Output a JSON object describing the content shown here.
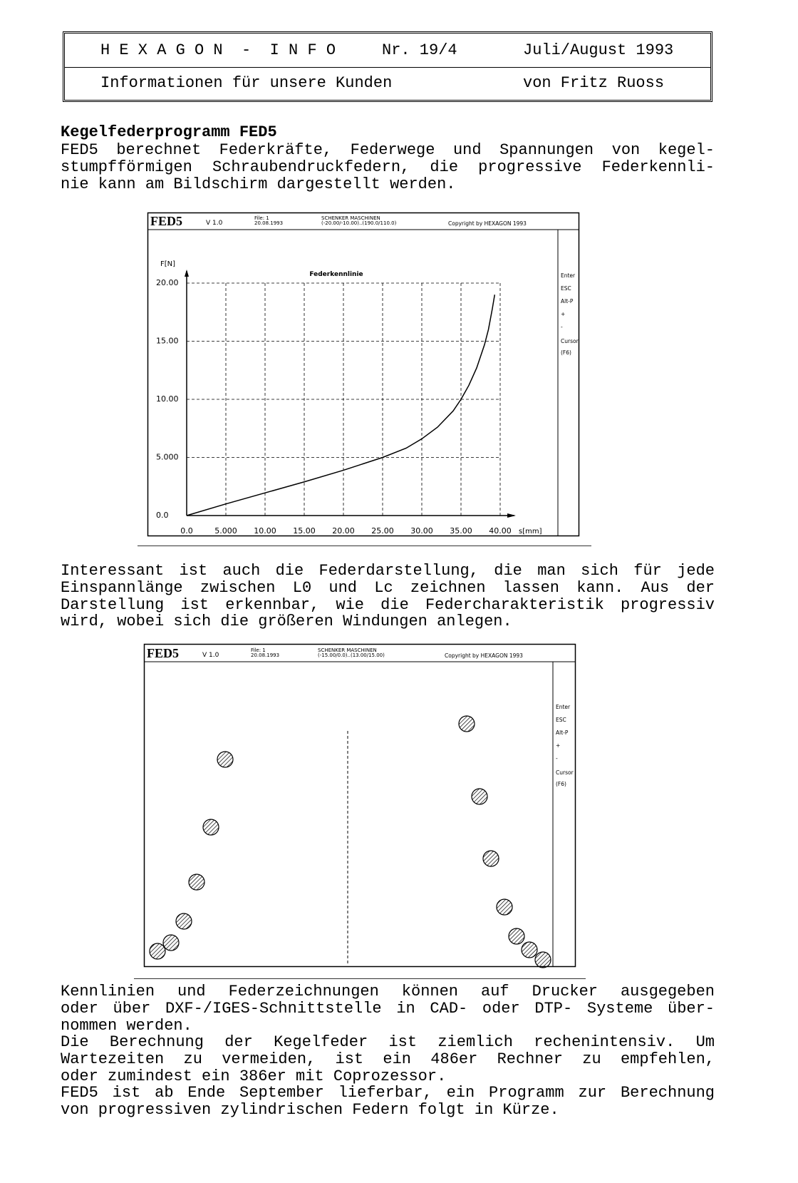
{
  "header": {
    "title": "H E X A G O N  -  I N F O",
    "issue": "Nr. 19/4",
    "date": "Juli/August 1993",
    "subtitle": "Informationen für unsere Kunden",
    "author": "von Fritz Ruoss"
  },
  "heading": "Kegelfederprogramm FED5",
  "paragraphs": [
    [
      "FED5 berechnet Federkräfte, Federwege und Spannungen von kegel-",
      "stumpfförmigen Schraubendruckfedern, die progressive Federkennli-",
      "nie kann am Bildschirm dargestellt werden."
    ],
    [
      "Interessant ist auch die Federdarstellung, die man sich für jede",
      "Einspannlänge zwischen L0 und Lc zeichnen lassen kann. Aus der",
      "Darstellung ist erkennbar, wie die Federcharakteristik progressiv",
      "wird, wobei sich die größeren Windungen anlegen."
    ],
    [
      "Kennlinien und Federzeichnungen können auf Drucker ausgegeben",
      "oder über DXF-/IGES-Schnittstelle in CAD- oder DTP- Systeme über-",
      "nommen werden."
    ],
    [
      "Die Berechnung der Kegelfeder ist ziemlich rechenintensiv. Um",
      "Wartezeiten zu vermeiden, ist ein 486er Rechner zu empfehlen,",
      "oder zumindest ein 386er mit Coprozessor."
    ],
    [
      "FED5 ist ab Ende September lieferbar, ein Programm zur Berechnung",
      "von progressiven zylindrischen Federn folgt in Kürze."
    ]
  ],
  "screenshots": [
    {
      "app": "FED5",
      "version": "V 1.0",
      "file": "File: 1",
      "date": "20.08.1993",
      "company": "SCHENKER MASCHINEN",
      "range": "(-20.00/-10.00)..(190.0/110.0)",
      "copyright": "Copyright by HEXAGON 1993",
      "menu": [
        "Enter",
        "ESC",
        "Alt-P",
        "+",
        "-",
        "Cursor",
        "(F6)"
      ]
    },
    {
      "app": "FED5",
      "version": "V 1.0",
      "file": "File: 1",
      "date": "20.08.1993",
      "company": "SCHENKER MASCHINEN",
      "range": "(-15.00/0.0)..(13.00/15.00)",
      "copyright": "Copyright by HEXAGON 1993",
      "menu": [
        "Enter",
        "ESC",
        "Alt-P",
        "+",
        "-",
        "Cursor",
        "(F6)"
      ]
    }
  ],
  "chart_data": {
    "type": "line",
    "title": "Federkennlinie",
    "y_label": "F[N]",
    "x_label": "s[mm]",
    "x": [
      0,
      5,
      10,
      15,
      20,
      25,
      28,
      30,
      32,
      34,
      35,
      36,
      37,
      38,
      38.5,
      39,
      39.3
    ],
    "series": [
      {
        "color": "#000000",
        "values": [
          0,
          1,
          1.95,
          2.9,
          3.9,
          5,
          5.8,
          6.6,
          7.6,
          9,
          10,
          11.2,
          12.7,
          14.7,
          16,
          17.8,
          19
        ]
      }
    ],
    "xlim": [
      0,
      40
    ],
    "ylim": [
      0,
      20
    ],
    "xticks": [
      {
        "value": 0,
        "label": "0.0"
      },
      {
        "value": 5,
        "label": "5.000"
      },
      {
        "value": 10,
        "label": "10.00"
      },
      {
        "value": 15,
        "label": "15.00"
      },
      {
        "value": 20,
        "label": "20.00"
      },
      {
        "value": 25,
        "label": "25.00"
      },
      {
        "value": 30,
        "label": "30.00"
      },
      {
        "value": 35,
        "label": "35.00"
      },
      {
        "value": 40,
        "label": "40.00"
      }
    ],
    "yticks": [
      {
        "value": 0,
        "label": "0.0"
      },
      {
        "value": 5,
        "label": "5.000"
      },
      {
        "value": 10,
        "label": "10.00"
      },
      {
        "value": 15,
        "label": "15.00"
      },
      {
        "value": 20,
        "label": "20.00"
      }
    ],
    "grid": true
  }
}
